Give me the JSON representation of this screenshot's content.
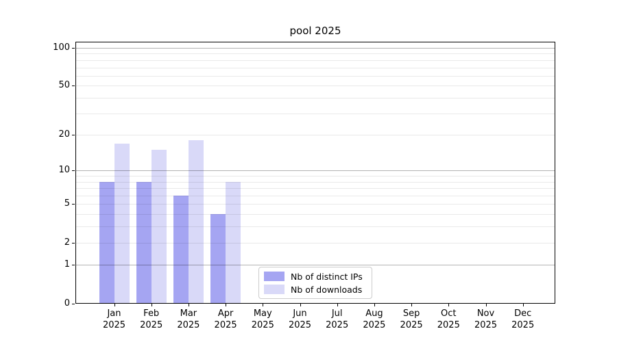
{
  "chart_data": {
    "type": "bar",
    "title": "pool 2025",
    "year": "2025",
    "categories": [
      "Jan",
      "Feb",
      "Mar",
      "Apr",
      "May",
      "Jun",
      "Jul",
      "Aug",
      "Sep",
      "Oct",
      "Nov",
      "Dec"
    ],
    "series": [
      {
        "name": "Nb of distinct IPs",
        "color": "#a5a5f2",
        "values": [
          8,
          8,
          6,
          4,
          0,
          0,
          0,
          0,
          0,
          0,
          0,
          0
        ]
      },
      {
        "name": "Nb of downloads",
        "color": "#d9d9f8",
        "values": [
          17,
          15,
          18,
          8,
          0,
          0,
          0,
          0,
          0,
          0,
          0,
          0
        ]
      }
    ],
    "y_scale": "log1p",
    "ylim": [
      0,
      113
    ],
    "y_ticks": [
      0,
      1,
      2,
      5,
      10,
      20,
      50,
      100
    ],
    "y_major_gridlines": [
      1,
      10,
      100
    ],
    "y_minor_gridlines": [
      2,
      3,
      4,
      5,
      6,
      7,
      8,
      9,
      20,
      30,
      40,
      50,
      60,
      70,
      80,
      90
    ],
    "grid": true,
    "legend_position": "lower center",
    "colors": {
      "major_grid": "rgba(0,0,0,0.30)",
      "minor_grid": "rgba(0,0,0,0.085)",
      "spine": "#000000",
      "text": "#000000",
      "background": "#ffffff"
    }
  }
}
